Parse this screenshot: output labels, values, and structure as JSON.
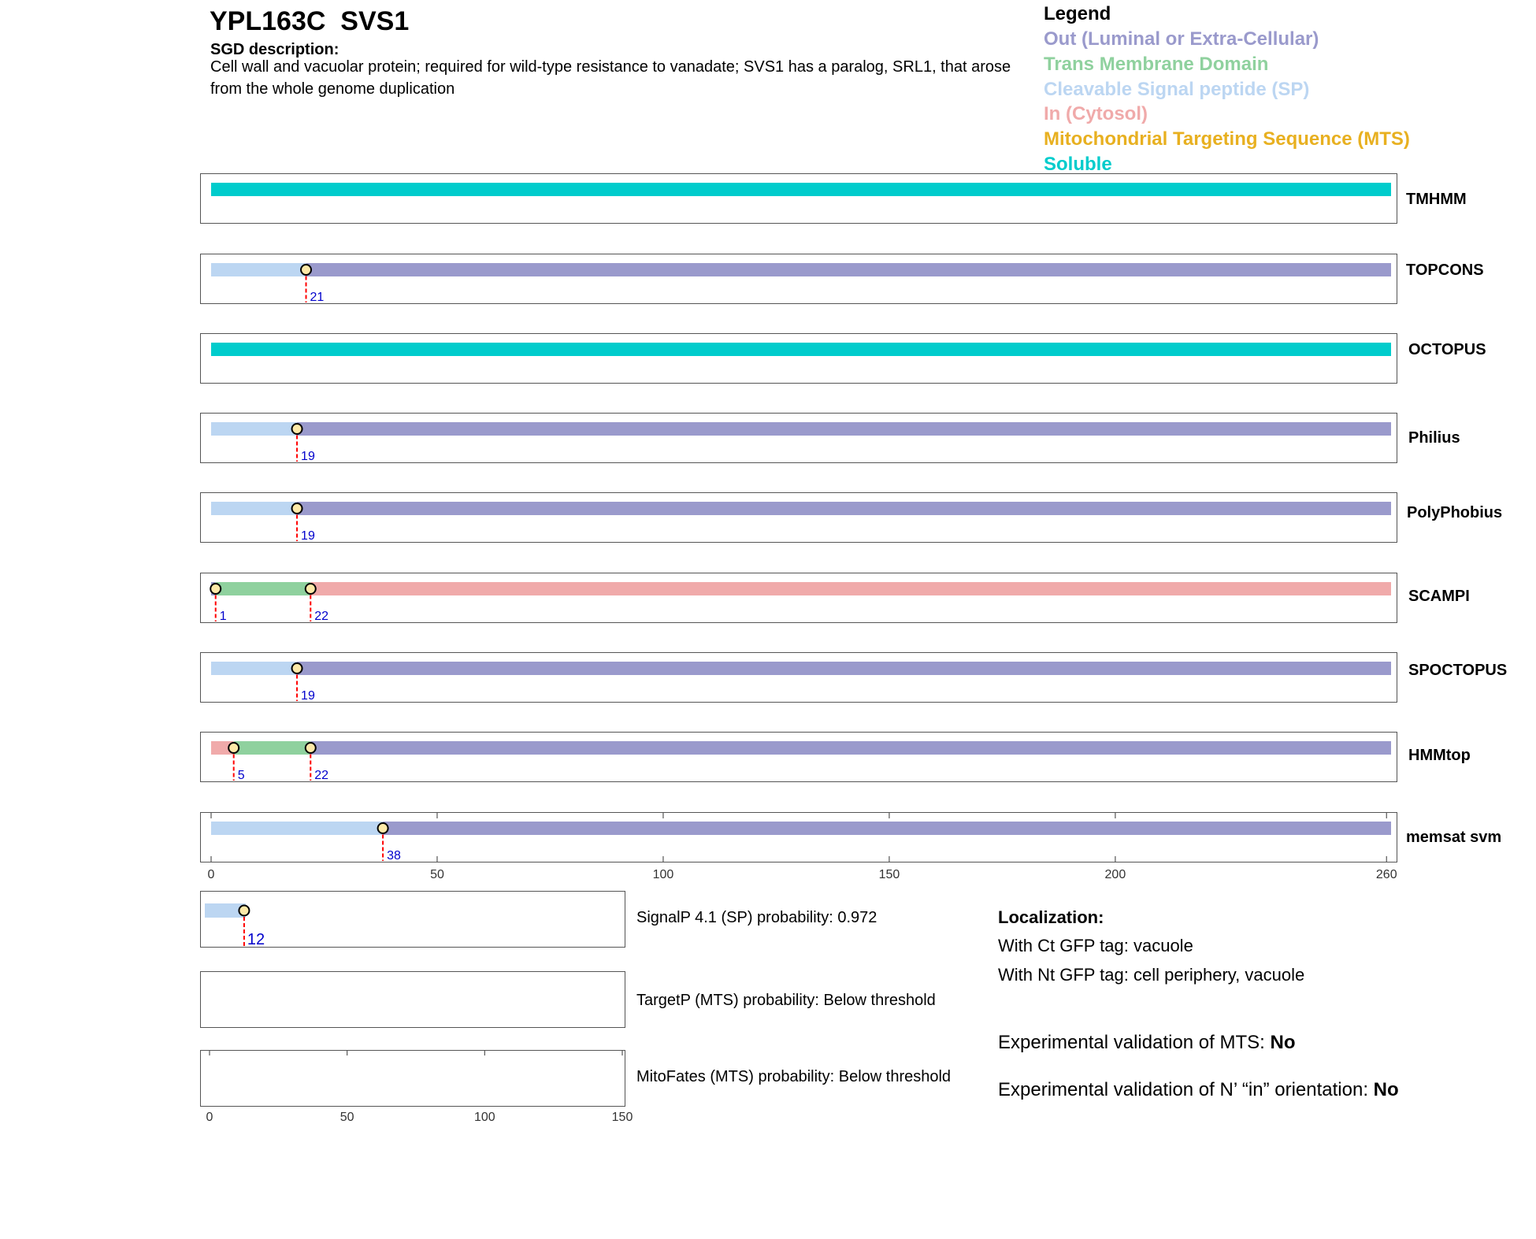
{
  "header": {
    "title": "YPL163C  SVS1",
    "sgd_heading": "SGD description:",
    "sgd_text": "Cell wall and vacuolar protein; required for wild-type resistance to vanadate; SVS1 has a paralog, SRL1, that arose from the whole genome duplication"
  },
  "legend": {
    "title": "Legend",
    "items": [
      {
        "label": "Out (Luminal or Extra-Cellular)",
        "color": "#9a9acc"
      },
      {
        "label": "Trans Membrane Domain",
        "color": "#8fd19e"
      },
      {
        "label": "Cleavable Signal peptide (SP)",
        "color": "#bcd6f2"
      },
      {
        "label": "In (Cytosol)",
        "color": "#f0aaaa"
      },
      {
        "label": "Mitochondrial Targeting Sequence (MTS)",
        "color": "#e8b020"
      },
      {
        "label": "Soluble",
        "color": "#00cccc"
      }
    ]
  },
  "chart_data": [
    {
      "type": "bar",
      "title": "",
      "xlim": [
        0,
        261
      ],
      "x_ticks": [
        0,
        50,
        100,
        150,
        200,
        260
      ],
      "colors": {
        "out": "#9a9acc",
        "tm": "#8fd19e",
        "sp": "#bcd6f2",
        "in": "#f0aaaa",
        "mts": "#e8b020",
        "soluble": "#00cccc"
      },
      "tracks": [
        {
          "name": "TMHMM",
          "segments": [
            {
              "type": "soluble",
              "start": 0,
              "end": 261
            }
          ],
          "markers": []
        },
        {
          "name": "TOPCONS",
          "segments": [
            {
              "type": "sp",
              "start": 0,
              "end": 21
            },
            {
              "type": "out",
              "start": 21,
              "end": 261
            }
          ],
          "markers": [
            21
          ]
        },
        {
          "name": "OCTOPUS",
          "segments": [
            {
              "type": "soluble",
              "start": 0,
              "end": 261
            }
          ],
          "markers": []
        },
        {
          "name": "Philius",
          "segments": [
            {
              "type": "sp",
              "start": 0,
              "end": 19
            },
            {
              "type": "out",
              "start": 19,
              "end": 261
            }
          ],
          "markers": [
            19
          ]
        },
        {
          "name": "PolyPhobius",
          "segments": [
            {
              "type": "sp",
              "start": 0,
              "end": 19
            },
            {
              "type": "out",
              "start": 19,
              "end": 261
            }
          ],
          "markers": [
            19
          ]
        },
        {
          "name": "SCAMPI",
          "segments": [
            {
              "type": "out",
              "start": 0,
              "end": 1
            },
            {
              "type": "tm",
              "start": 1,
              "end": 22
            },
            {
              "type": "in",
              "start": 22,
              "end": 261
            }
          ],
          "markers": [
            1,
            22
          ]
        },
        {
          "name": "SPOCTOPUS",
          "segments": [
            {
              "type": "sp",
              "start": 0,
              "end": 19
            },
            {
              "type": "out",
              "start": 19,
              "end": 261
            }
          ],
          "markers": [
            19
          ]
        },
        {
          "name": "HMMtop",
          "segments": [
            {
              "type": "in",
              "start": 0,
              "end": 5
            },
            {
              "type": "tm",
              "start": 5,
              "end": 22
            },
            {
              "type": "out",
              "start": 22,
              "end": 261
            }
          ],
          "markers": [
            5,
            22
          ]
        },
        {
          "name": "memsat svm",
          "segments": [
            {
              "type": "sp",
              "start": 0,
              "end": 38
            },
            {
              "type": "out",
              "start": 38,
              "end": 261
            }
          ],
          "markers": [
            38
          ]
        }
      ]
    },
    {
      "type": "bar",
      "title": "",
      "xlim": [
        0,
        150
      ],
      "x_ticks": [
        0,
        50,
        100,
        150
      ],
      "tracks": [
        {
          "name": "SignalP",
          "label": "SignalP 4.1 (SP) probability: 0.972",
          "segments": [
            {
              "type": "sp",
              "start": 0,
              "end": 12
            }
          ],
          "markers": [
            12
          ]
        },
        {
          "name": "TargetP",
          "label": "TargetP (MTS) probability: Below threshold",
          "segments": [],
          "markers": []
        },
        {
          "name": "MitoFates",
          "label": "MitoFates (MTS) probability: Below threshold",
          "segments": [],
          "markers": []
        }
      ]
    }
  ],
  "localization": {
    "heading": "Localization:",
    "ct": "With Ct GFP tag: vacuole",
    "nt": "With Nt GFP tag: cell periphery, vacuole",
    "mts_prefix": "Experimental validation of MTS: ",
    "mts_value": "No",
    "nin_prefix": "Experimental validation of N’ “in” orientation: ",
    "nin_value": "No"
  }
}
